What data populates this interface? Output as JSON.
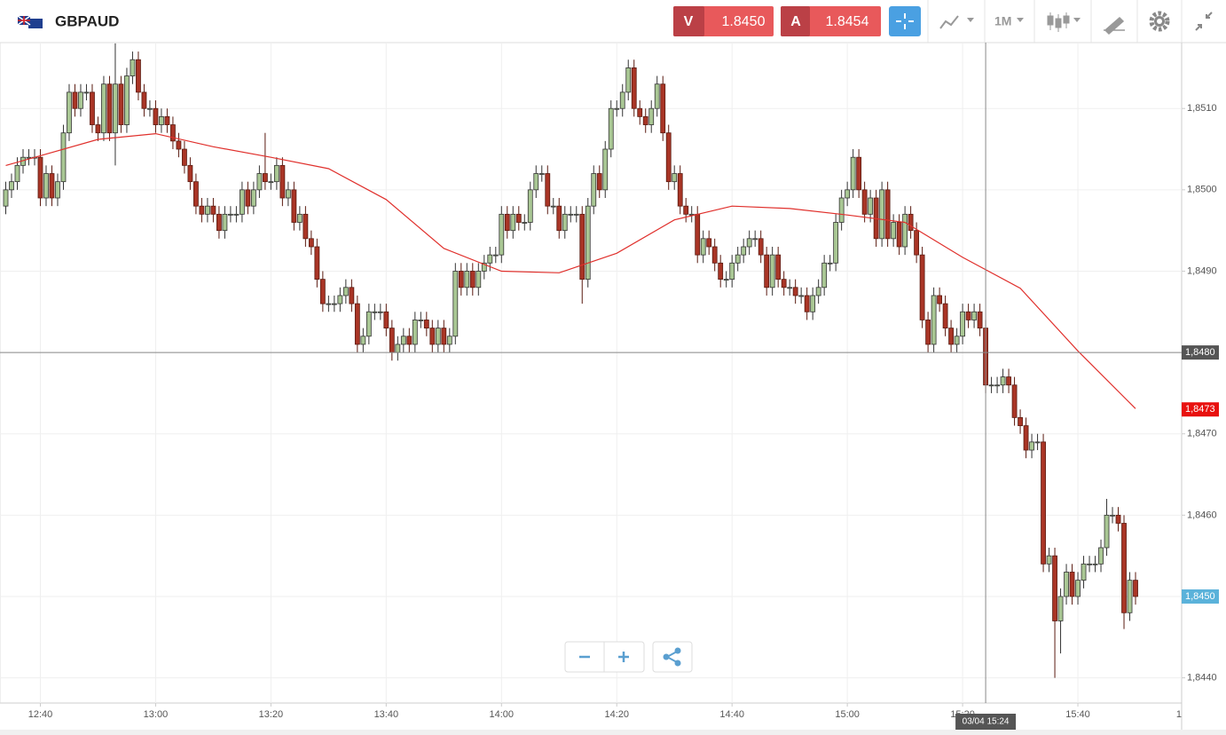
{
  "header": {
    "symbol": "GBPAUD",
    "sell_label": "V",
    "sell_price": "1.8450",
    "buy_label": "A",
    "buy_price": "1.8454",
    "timeframe": "1M"
  },
  "chart_data": {
    "type": "candlestick",
    "x": [
      "12:34",
      "12:35",
      "12:36",
      "12:37",
      "12:38",
      "12:39",
      "12:40",
      "12:41",
      "12:42",
      "12:43",
      "12:44",
      "12:45",
      "12:46",
      "12:47",
      "12:48",
      "12:49",
      "12:50",
      "12:51",
      "12:52",
      "12:53",
      "12:54",
      "12:55",
      "12:56",
      "12:57",
      "12:58",
      "12:59",
      "13:00",
      "13:01",
      "13:02",
      "13:03",
      "13:04",
      "13:05",
      "13:06",
      "13:07",
      "13:08",
      "13:09",
      "13:10",
      "13:11",
      "13:12",
      "13:13",
      "13:14",
      "13:15",
      "13:16",
      "13:17",
      "13:18",
      "13:19",
      "13:20",
      "13:21",
      "13:22",
      "13:23",
      "13:24",
      "13:25",
      "13:26",
      "13:27",
      "13:28",
      "13:29",
      "13:30",
      "13:31",
      "13:32",
      "13:33",
      "13:34",
      "13:35",
      "13:36",
      "13:37",
      "13:38",
      "13:39",
      "13:40",
      "13:41",
      "13:42",
      "13:43",
      "13:44",
      "13:45",
      "13:46",
      "13:47",
      "13:48",
      "13:49",
      "13:50",
      "13:51",
      "13:52",
      "13:53",
      "13:54",
      "13:55",
      "13:56",
      "13:57",
      "13:58",
      "13:59",
      "14:00",
      "14:01",
      "14:02",
      "14:03",
      "14:04",
      "14:05",
      "14:06",
      "14:07",
      "14:08",
      "14:09",
      "14:10",
      "14:11",
      "14:12",
      "14:13",
      "14:14",
      "14:15",
      "14:16",
      "14:17",
      "14:18",
      "14:19",
      "14:20",
      "14:21",
      "14:22",
      "14:23",
      "14:24",
      "14:25",
      "14:26",
      "14:27",
      "14:28",
      "14:29",
      "14:30",
      "14:31",
      "14:32",
      "14:33",
      "14:34",
      "14:35",
      "14:36",
      "14:37",
      "14:38",
      "14:39",
      "14:40",
      "14:41",
      "14:42",
      "14:43",
      "14:44",
      "14:45",
      "14:46",
      "14:47",
      "14:48",
      "14:49",
      "14:50",
      "14:51",
      "14:52",
      "14:53",
      "14:54",
      "14:55",
      "14:56",
      "14:57",
      "14:58",
      "14:59",
      "15:00",
      "15:01",
      "15:02",
      "15:03",
      "15:04",
      "15:05",
      "15:06",
      "15:07",
      "15:08",
      "15:09",
      "15:10",
      "15:11",
      "15:12",
      "15:13",
      "15:14",
      "15:15",
      "15:16",
      "15:17",
      "15:18",
      "15:19",
      "15:20",
      "15:21",
      "15:22",
      "15:23",
      "15:24",
      "15:25",
      "15:26",
      "15:27",
      "15:28",
      "15:29",
      "15:30",
      "15:31",
      "15:32",
      "15:33",
      "15:34",
      "15:35",
      "15:36",
      "15:37",
      "15:38",
      "15:39",
      "15:40",
      "15:41",
      "15:42",
      "15:43",
      "15:44",
      "15:45",
      "15:46",
      "15:47",
      "15:48",
      "15:49",
      "15:50"
    ],
    "open": [
      1.8498,
      1.85,
      1.8501,
      1.8503,
      1.8504,
      1.8504,
      1.8504,
      1.8499,
      1.8502,
      1.8499,
      1.8501,
      1.8507,
      1.8512,
      1.851,
      1.8512,
      1.8512,
      1.8508,
      1.8507,
      1.8513,
      1.8507,
      1.8513,
      1.8508,
      1.8514,
      1.8516,
      1.8512,
      1.851,
      1.851,
      1.8508,
      1.8509,
      1.8508,
      1.8506,
      1.8505,
      1.8503,
      1.8501,
      1.8498,
      1.8497,
      1.8498,
      1.8497,
      1.8495,
      1.8497,
      1.8497,
      1.8497,
      1.85,
      1.8498,
      1.85,
      1.8502,
      1.8501,
      1.8501,
      1.8503,
      1.8499,
      1.85,
      1.8496,
      1.8497,
      1.8494,
      1.8493,
      1.8489,
      1.8486,
      1.8486,
      1.8486,
      1.8487,
      1.8488,
      1.8486,
      1.8481,
      1.8482,
      1.8485,
      1.8485,
      1.8485,
      1.8483,
      1.848,
      1.8481,
      1.8482,
      1.8481,
      1.8484,
      1.8484,
      1.8483,
      1.8481,
      1.8483,
      1.8481,
      1.8482,
      1.849,
      1.8488,
      1.849,
      1.8488,
      1.849,
      1.8491,
      1.8492,
      1.8492,
      1.8497,
      1.8495,
      1.8497,
      1.8496,
      1.8496,
      1.85,
      1.8502,
      1.8502,
      1.8498,
      1.8498,
      1.8495,
      1.8497,
      1.8497,
      1.8497,
      1.8489,
      1.8498,
      1.8502,
      1.85,
      1.8505,
      1.851,
      1.851,
      1.8512,
      1.8515,
      1.851,
      1.8509,
      1.8508,
      1.851,
      1.8513,
      1.8507,
      1.8501,
      1.8502,
      1.8498,
      1.8497,
      1.8497,
      1.8492,
      1.8494,
      1.8493,
      1.8491,
      1.8489,
      1.8489,
      1.8491,
      1.8492,
      1.8493,
      1.8494,
      1.8494,
      1.8492,
      1.8488,
      1.8492,
      1.8489,
      1.8488,
      1.8488,
      1.8487,
      1.8487,
      1.8485,
      1.8487,
      1.8488,
      1.8491,
      1.8491,
      1.8496,
      1.8499,
      1.85,
      1.8504,
      1.85,
      1.8497,
      1.8499,
      1.8494,
      1.85,
      1.8494,
      1.8496,
      1.8493,
      1.8497,
      1.8495,
      1.8492,
      1.8484,
      1.8481,
      1.8487,
      1.8486,
      1.8483,
      1.8481,
      1.8482,
      1.8485,
      1.8484,
      1.8485,
      1.8483,
      1.8476,
      1.8476,
      1.8476,
      1.8477,
      1.8476,
      1.8472,
      1.8471,
      1.8468,
      1.8469,
      1.8469,
      1.8454,
      1.8455,
      1.8447,
      1.845,
      1.8453,
      1.845,
      1.8452,
      1.8454,
      1.8454,
      1.8454,
      1.8456,
      1.846,
      1.846,
      1.8459,
      1.8448,
      1.8452
    ],
    "high": [
      1.8501,
      1.8502,
      1.8504,
      1.8505,
      1.8505,
      1.8505,
      1.8505,
      1.8503,
      1.8503,
      1.8502,
      1.8508,
      1.8513,
      1.8513,
      1.8513,
      1.8513,
      1.8513,
      1.8509,
      1.8514,
      1.8514,
      1.8518,
      1.8514,
      1.8515,
      1.8517,
      1.8517,
      1.8513,
      1.8511,
      1.8511,
      1.851,
      1.851,
      1.8509,
      1.8507,
      1.8506,
      1.8504,
      1.8502,
      1.8499,
      1.8499,
      1.8499,
      1.8498,
      1.8498,
      1.8498,
      1.8498,
      1.8501,
      1.8501,
      1.8501,
      1.8503,
      1.8507,
      1.8502,
      1.8504,
      1.8504,
      1.8501,
      1.8501,
      1.8498,
      1.8498,
      1.8495,
      1.8494,
      1.849,
      1.8487,
      1.8487,
      1.8488,
      1.8489,
      1.8489,
      1.8487,
      1.8483,
      1.8486,
      1.8486,
      1.8486,
      1.8486,
      1.8484,
      1.8482,
      1.8483,
      1.8483,
      1.8485,
      1.8485,
      1.8485,
      1.8484,
      1.8484,
      1.8484,
      1.8483,
      1.8491,
      1.8491,
      1.8491,
      1.8491,
      1.8491,
      1.8492,
      1.8493,
      1.8493,
      1.8498,
      1.8498,
      1.8498,
      1.8498,
      1.8497,
      1.8501,
      1.8503,
      1.8503,
      1.8503,
      1.8499,
      1.8499,
      1.8498,
      1.8498,
      1.8498,
      1.8498,
      1.8499,
      1.8503,
      1.8503,
      1.8506,
      1.8511,
      1.8511,
      1.8513,
      1.8516,
      1.8516,
      1.8511,
      1.851,
      1.8511,
      1.8514,
      1.8514,
      1.8508,
      1.8503,
      1.8503,
      1.8499,
      1.8498,
      1.8498,
      1.8495,
      1.8495,
      1.8494,
      1.8492,
      1.849,
      1.8492,
      1.8493,
      1.8494,
      1.8495,
      1.8495,
      1.8495,
      1.8493,
      1.8493,
      1.8493,
      1.849,
      1.8489,
      1.8489,
      1.8488,
      1.8488,
      1.8488,
      1.8489,
      1.8492,
      1.8492,
      1.8497,
      1.85,
      1.8501,
      1.8505,
      1.8505,
      1.8501,
      1.85,
      1.85,
      1.8501,
      1.8501,
      1.8497,
      1.8497,
      1.8498,
      1.8498,
      1.8496,
      1.8493,
      1.8485,
      1.8488,
      1.8488,
      1.8487,
      1.8484,
      1.8483,
      1.8486,
      1.8486,
      1.8486,
      1.8486,
      1.8484,
      1.8477,
      1.8477,
      1.8478,
      1.8478,
      1.8477,
      1.8473,
      1.8472,
      1.847,
      1.847,
      1.847,
      1.8456,
      1.8456,
      1.8451,
      1.8454,
      1.8454,
      1.8453,
      1.8455,
      1.8455,
      1.8455,
      1.8457,
      1.8462,
      1.8461,
      1.8461,
      1.846,
      1.8453,
      1.8453
    ],
    "low": [
      1.8497,
      1.8499,
      1.85,
      1.8502,
      1.8503,
      1.8503,
      1.8498,
      1.8498,
      1.8498,
      1.8498,
      1.85,
      1.8506,
      1.8509,
      1.8509,
      1.8511,
      1.8507,
      1.8506,
      1.8506,
      1.8506,
      1.8503,
      1.8507,
      1.8507,
      1.8513,
      1.8511,
      1.8509,
      1.8509,
      1.8507,
      1.8507,
      1.8507,
      1.8505,
      1.8504,
      1.8502,
      1.85,
      1.8497,
      1.8496,
      1.8496,
      1.8496,
      1.8494,
      1.8494,
      1.8496,
      1.8496,
      1.8496,
      1.8497,
      1.8497,
      1.8499,
      1.85,
      1.85,
      1.85,
      1.8498,
      1.8498,
      1.8495,
      1.8495,
      1.8493,
      1.8492,
      1.8488,
      1.8485,
      1.8485,
      1.8485,
      1.8485,
      1.8486,
      1.8485,
      1.848,
      1.848,
      1.8481,
      1.8484,
      1.8484,
      1.8482,
      1.8479,
      1.8479,
      1.848,
      1.848,
      1.848,
      1.8483,
      1.8482,
      1.848,
      1.848,
      1.848,
      1.848,
      1.8481,
      1.8487,
      1.8487,
      1.8487,
      1.8487,
      1.8489,
      1.849,
      1.8491,
      1.8491,
      1.8494,
      1.8494,
      1.8495,
      1.8495,
      1.8495,
      1.8499,
      1.8501,
      1.8497,
      1.8497,
      1.8494,
      1.8494,
      1.8496,
      1.8496,
      1.8486,
      1.8488,
      1.8497,
      1.8499,
      1.8499,
      1.8504,
      1.8509,
      1.8509,
      1.8511,
      1.8509,
      1.8508,
      1.8507,
      1.8507,
      1.8509,
      1.8506,
      1.85,
      1.85,
      1.8497,
      1.8496,
      1.8496,
      1.8491,
      1.8491,
      1.8492,
      1.849,
      1.8488,
      1.8488,
      1.8488,
      1.849,
      1.8491,
      1.8492,
      1.8493,
      1.8491,
      1.8487,
      1.8487,
      1.8488,
      1.8487,
      1.8487,
      1.8486,
      1.8486,
      1.8484,
      1.8484,
      1.8486,
      1.8487,
      1.849,
      1.849,
      1.8495,
      1.8498,
      1.8499,
      1.8499,
      1.8496,
      1.8496,
      1.8493,
      1.8493,
      1.8493,
      1.8493,
      1.8492,
      1.8492,
      1.8494,
      1.8491,
      1.8483,
      1.848,
      1.848,
      1.8485,
      1.8482,
      1.848,
      1.848,
      1.8481,
      1.8483,
      1.8483,
      1.8482,
      1.8475,
      1.8475,
      1.8475,
      1.8475,
      1.8475,
      1.8471,
      1.847,
      1.8467,
      1.8467,
      1.8468,
      1.8453,
      1.8453,
      1.844,
      1.8443,
      1.8449,
      1.8449,
      1.8449,
      1.8451,
      1.8453,
      1.8453,
      1.8453,
      1.8455,
      1.8459,
      1.8458,
      1.8446,
      1.8447,
      1.8449
    ],
    "close": [
      1.85,
      1.8501,
      1.8503,
      1.8504,
      1.8504,
      1.8504,
      1.8499,
      1.8502,
      1.8499,
      1.8501,
      1.8507,
      1.8512,
      1.851,
      1.8512,
      1.8512,
      1.8508,
      1.8507,
      1.8513,
      1.8507,
      1.8513,
      1.8508,
      1.8514,
      1.8516,
      1.8512,
      1.851,
      1.851,
      1.8508,
      1.8509,
      1.8508,
      1.8506,
      1.8505,
      1.8503,
      1.8501,
      1.8498,
      1.8497,
      1.8498,
      1.8497,
      1.8495,
      1.8497,
      1.8497,
      1.8497,
      1.85,
      1.8498,
      1.85,
      1.8502,
      1.8501,
      1.8501,
      1.8503,
      1.8499,
      1.85,
      1.8496,
      1.8497,
      1.8494,
      1.8493,
      1.8489,
      1.8486,
      1.8486,
      1.8486,
      1.8487,
      1.8488,
      1.8486,
      1.8481,
      1.8482,
      1.8485,
      1.8485,
      1.8485,
      1.8483,
      1.848,
      1.8481,
      1.8482,
      1.8481,
      1.8484,
      1.8484,
      1.8483,
      1.8481,
      1.8483,
      1.8481,
      1.8482,
      1.849,
      1.8488,
      1.849,
      1.8488,
      1.849,
      1.8491,
      1.8492,
      1.8492,
      1.8497,
      1.8495,
      1.8497,
      1.8496,
      1.8496,
      1.85,
      1.8502,
      1.8502,
      1.8498,
      1.8498,
      1.8495,
      1.8497,
      1.8497,
      1.8497,
      1.8489,
      1.8498,
      1.8502,
      1.85,
      1.8505,
      1.851,
      1.851,
      1.8512,
      1.8515,
      1.851,
      1.8509,
      1.8508,
      1.851,
      1.8513,
      1.8507,
      1.8501,
      1.8502,
      1.8498,
      1.8497,
      1.8497,
      1.8492,
      1.8494,
      1.8493,
      1.8491,
      1.8489,
      1.8489,
      1.8491,
      1.8492,
      1.8493,
      1.8494,
      1.8494,
      1.8492,
      1.8488,
      1.8492,
      1.8489,
      1.8488,
      1.8488,
      1.8487,
      1.8487,
      1.8485,
      1.8487,
      1.8488,
      1.8491,
      1.8491,
      1.8496,
      1.8499,
      1.85,
      1.8504,
      1.85,
      1.8497,
      1.8499,
      1.8494,
      1.85,
      1.8494,
      1.8496,
      1.8493,
      1.8497,
      1.8495,
      1.8492,
      1.8484,
      1.8481,
      1.8487,
      1.8486,
      1.8483,
      1.8481,
      1.8482,
      1.8485,
      1.8484,
      1.8485,
      1.8483,
      1.8476,
      1.8476,
      1.8476,
      1.8477,
      1.8476,
      1.8472,
      1.8471,
      1.8468,
      1.8469,
      1.8469,
      1.8454,
      1.8455,
      1.8447,
      1.845,
      1.8453,
      1.845,
      1.8452,
      1.8454,
      1.8454,
      1.8454,
      1.8456,
      1.846,
      1.846,
      1.8459,
      1.8448,
      1.8452,
      1.845
    ],
    "up_color": "#a9c794",
    "down_color": "#a93526",
    "moving_average": {
      "color": "#e0302c",
      "x": [
        "12:34",
        "12:40",
        "12:50",
        "13:00",
        "13:10",
        "13:20",
        "13:30",
        "13:40",
        "13:50",
        "14:00",
        "14:10",
        "14:20",
        "14:30",
        "14:40",
        "14:50",
        "15:00",
        "15:10",
        "15:20",
        "15:30",
        "15:40",
        "15:50"
      ],
      "values": [
        1.8503,
        1.85042,
        1.85062,
        1.85069,
        1.85053,
        1.8504,
        1.85026,
        1.84988,
        1.84928,
        1.849,
        1.84898,
        1.84922,
        1.84963,
        1.8498,
        1.84977,
        1.84969,
        1.8496,
        1.84917,
        1.84879,
        1.84802,
        1.84731
      ]
    },
    "xlim": [
      "12:33",
      "15:58"
    ],
    "xticks": [
      "12:40",
      "13:00",
      "13:20",
      "13:40",
      "14:00",
      "14:20",
      "14:40",
      "15:00",
      "15:20",
      "15:40",
      {
        "value": "16:00",
        "label": "1"
      }
    ],
    "ylim": [
      1.84369,
      1.85181
    ],
    "yticks": [
      {
        "value": 1.844,
        "label": "1,8440"
      },
      {
        "value": 1.845,
        "label": "1,8450"
      },
      {
        "value": 1.846,
        "label": "1,8460"
      },
      {
        "value": 1.847,
        "label": "1,8470"
      },
      {
        "value": 1.848,
        "label": "1,8480"
      },
      {
        "value": 1.849,
        "label": "1,8490"
      },
      {
        "value": 1.85,
        "label": "1,8500"
      },
      {
        "value": 1.851,
        "label": "1,8510"
      }
    ],
    "grid": true,
    "crosshair": {
      "x": {
        "value": "15:24",
        "label": "03/04 15:24"
      },
      "y": {
        "value": 1.848,
        "label": "1,8480"
      }
    },
    "price_labels": [
      {
        "value": 1.8473,
        "label": "1,8473",
        "color": "#e8110f"
      },
      {
        "value": 1.845,
        "label": "1,8450",
        "color": "#5ab2da"
      }
    ]
  }
}
